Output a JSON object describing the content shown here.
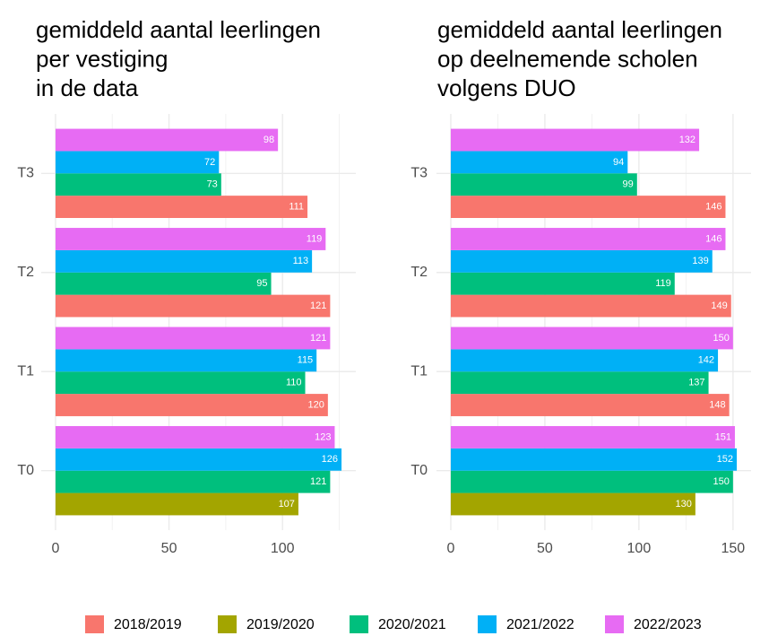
{
  "chart_data": [
    {
      "type": "bar",
      "orientation": "horizontal",
      "title": [
        "gemiddeld aantal leerlingen",
        "per vestiging",
        "in de data"
      ],
      "categories": [
        "T0",
        "T1",
        "T2",
        "T3"
      ],
      "series": [
        {
          "name": "2018/2019",
          "color": "#F8766D",
          "values": [
            null,
            120,
            121,
            111
          ]
        },
        {
          "name": "2019/2020",
          "color": "#A3A500",
          "values": [
            107,
            null,
            null,
            null
          ]
        },
        {
          "name": "2020/2021",
          "color": "#00BF7D",
          "values": [
            121,
            110,
            95,
            73
          ]
        },
        {
          "name": "2021/2022",
          "color": "#00B0F6",
          "values": [
            126,
            115,
            113,
            72
          ]
        },
        {
          "name": "2022/2023",
          "color": "#E76BF3",
          "values": [
            123,
            121,
            119,
            98
          ]
        }
      ],
      "xlim": [
        -6.3,
        132.3
      ],
      "xticks": [
        0,
        50,
        100
      ],
      "grid": true
    },
    {
      "type": "bar",
      "orientation": "horizontal",
      "title": [
        "gemiddeld aantal leerlingen",
        "op deelnemende scholen",
        "volgens DUO"
      ],
      "categories": [
        "T0",
        "T1",
        "T2",
        "T3"
      ],
      "series": [
        {
          "name": "2018/2019",
          "color": "#F8766D",
          "values": [
            null,
            148,
            149,
            146
          ]
        },
        {
          "name": "2019/2020",
          "color": "#A3A500",
          "values": [
            130,
            null,
            null,
            null
          ]
        },
        {
          "name": "2020/2021",
          "color": "#00BF7D",
          "values": [
            150,
            137,
            119,
            99
          ]
        },
        {
          "name": "2021/2022",
          "color": "#00B0F6",
          "values": [
            152,
            142,
            139,
            94
          ]
        },
        {
          "name": "2022/2023",
          "color": "#E76BF3",
          "values": [
            151,
            150,
            146,
            132
          ]
        }
      ],
      "xlim": [
        -7.6,
        159.6
      ],
      "xticks": [
        0,
        50,
        100,
        150
      ],
      "grid": true
    }
  ]
}
